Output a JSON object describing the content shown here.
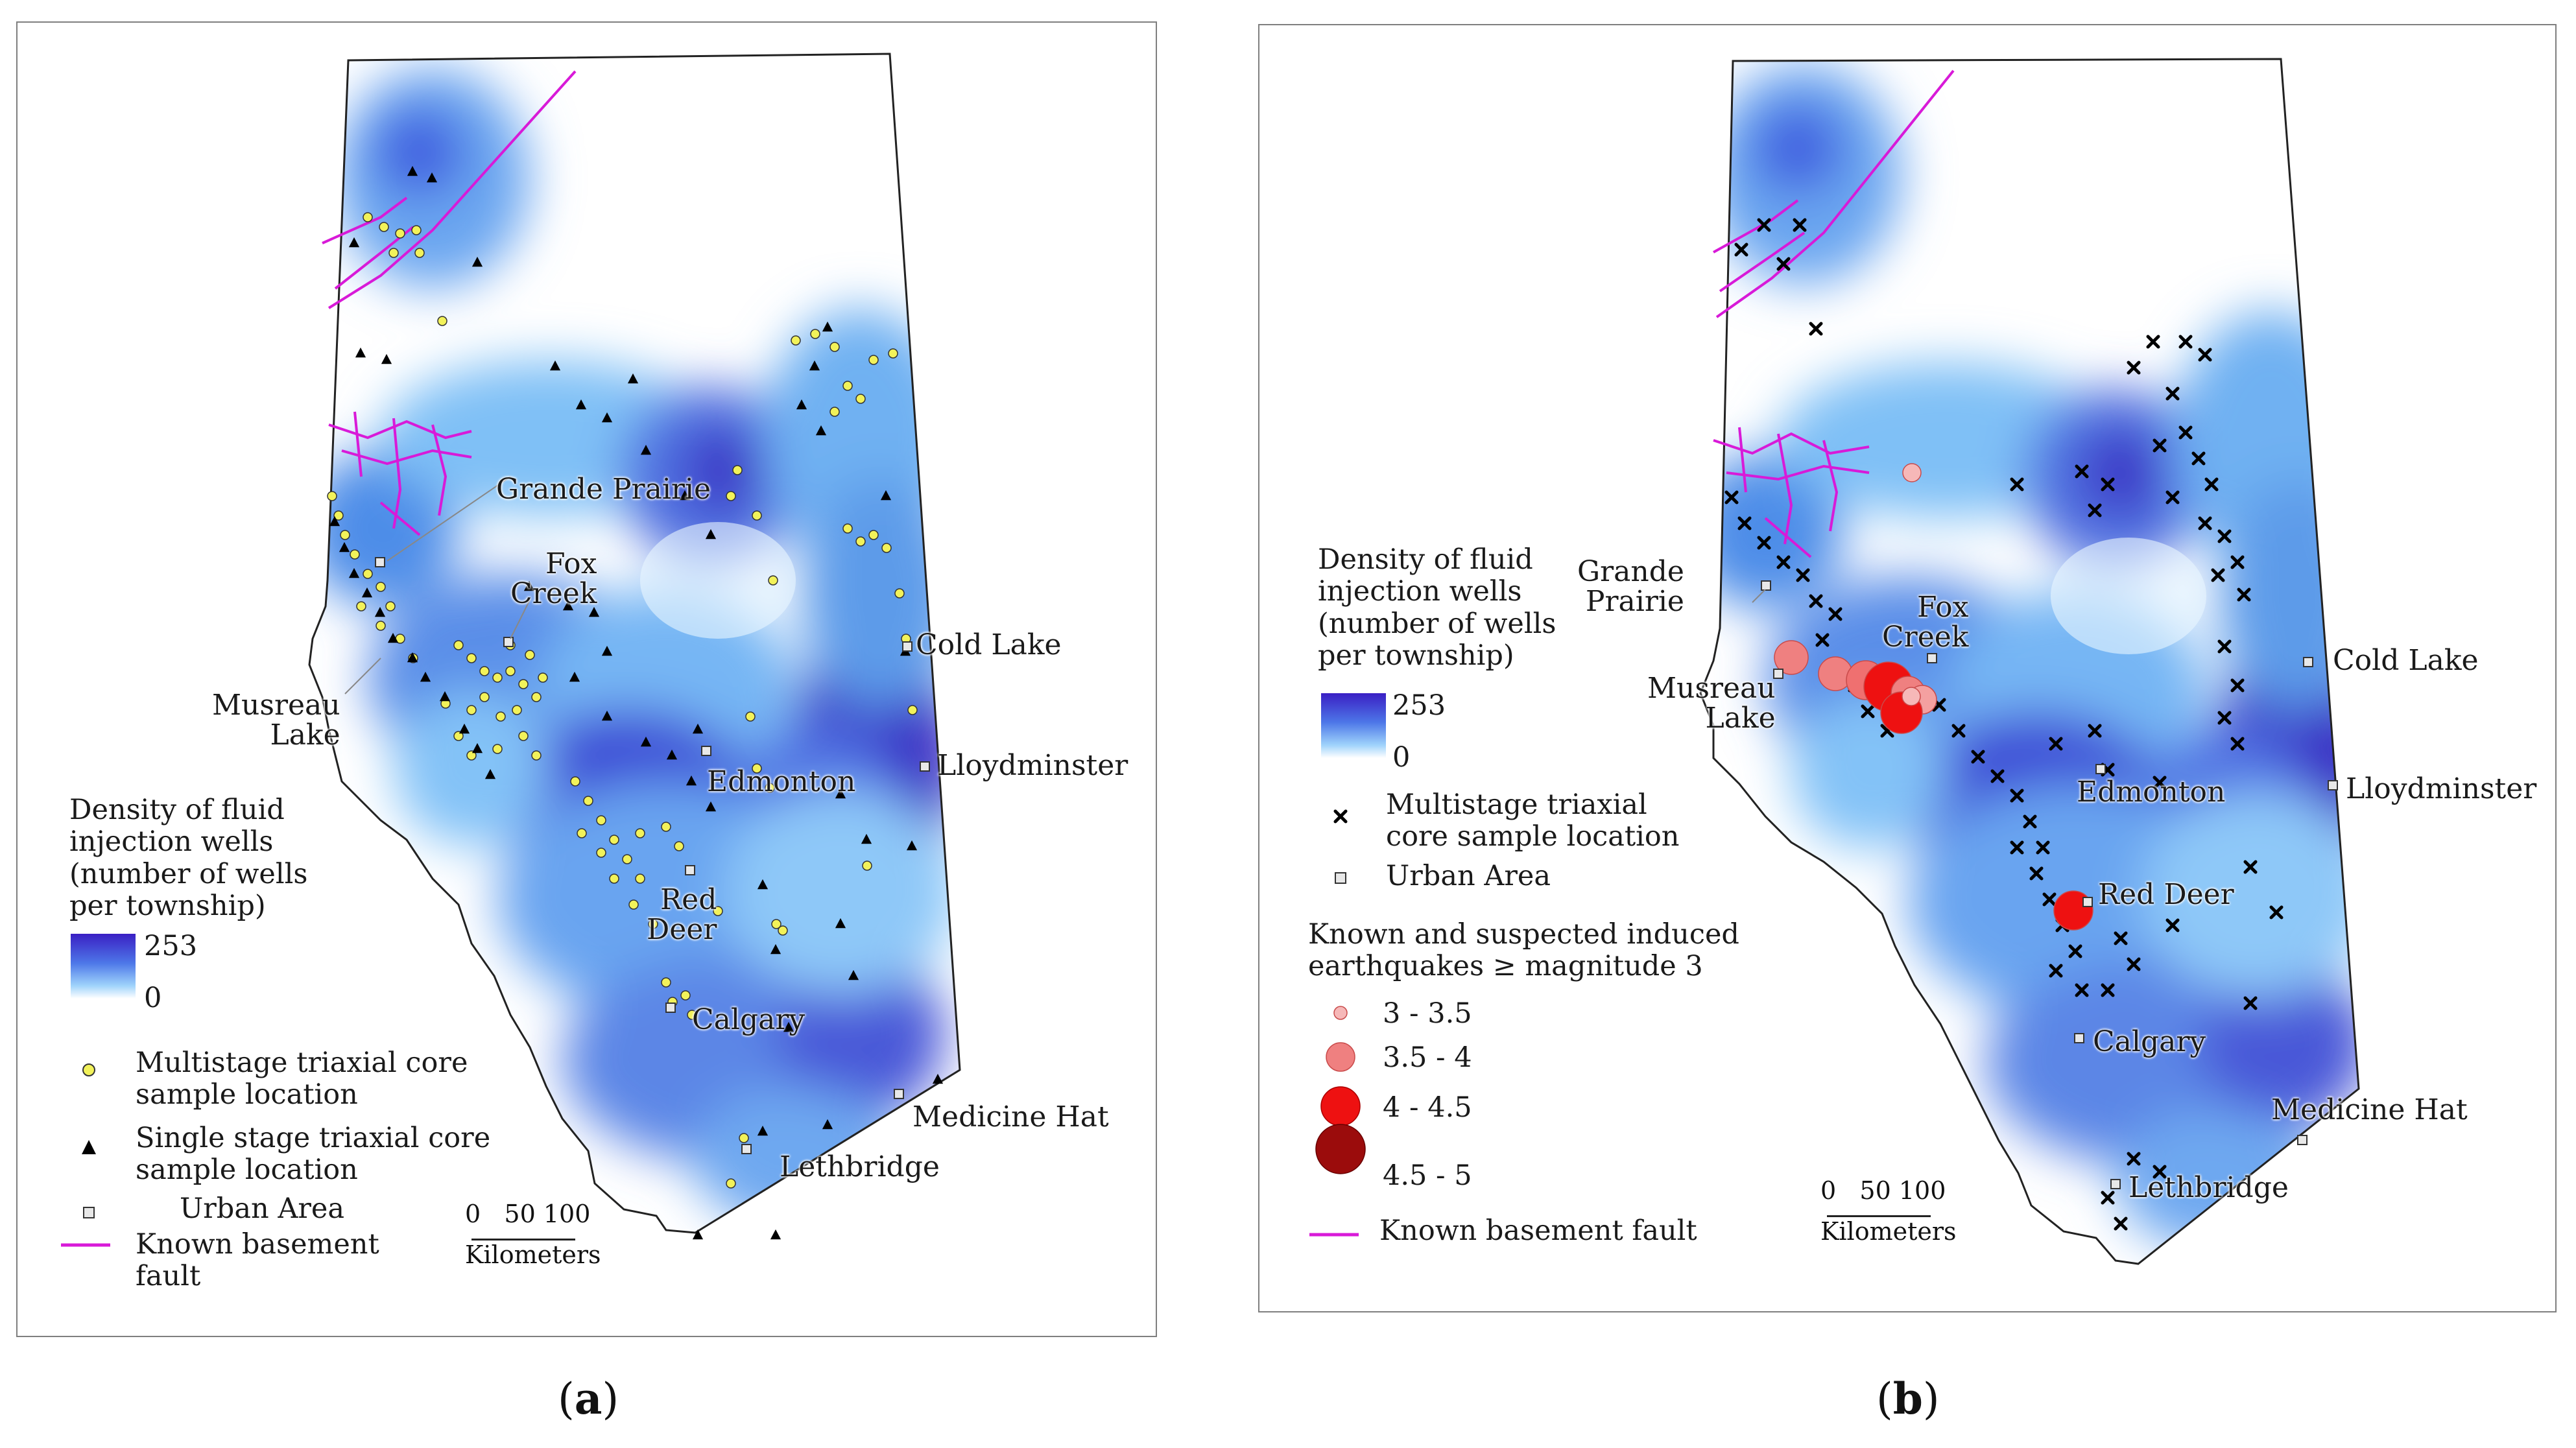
{
  "panel_a": {
    "caption_letter": "a",
    "cities": {
      "grande_prairie": "Grande Prairie",
      "fox_creek": "Fox\nCreek",
      "musreau_lake": "Musreau\nLake",
      "cold_lake": "Cold Lake",
      "edmonton": "Edmonton",
      "lloydminster": "Lloydminster",
      "red_deer": "Red\nDeer",
      "calgary": "Calgary",
      "medicine_hat": "Medicine Hat",
      "lethbridge": "Lethbridge"
    },
    "legend": {
      "density_title": "Density of fluid\ninjection wells\n(number of wells\nper township)",
      "density_max": "253",
      "density_min": "0",
      "multistage": "Multistage triaxial core\nsample location",
      "singlestage": "Single stage triaxial core\nsample location",
      "urban": "Urban Area",
      "fault": "Known basement\nfault"
    },
    "scale": {
      "ticks": "0   50 100",
      "unit": "Kilometers"
    }
  },
  "panel_b": {
    "caption_letter": "b",
    "cities": {
      "grande_prairie": "Grande\nPrairie",
      "fox_creek": "Fox\nCreek",
      "musreau_lake": "Musreau\nLake",
      "cold_lake": "Cold Lake",
      "edmonton": "Edmonton",
      "lloydminster": "Lloydminster",
      "red_deer": "Red Deer",
      "calgary": "Calgary",
      "medicine_hat": "Medicine Hat",
      "lethbridge": "Lethbridge"
    },
    "legend": {
      "density_title": "Density of fluid\ninjection wells\n(number of wells\nper township)",
      "density_max": "253",
      "density_min": "0",
      "multistage": "Multistage triaxial\ncore sample location",
      "urban": "Urban Area",
      "quake_title": "Known and suspected induced\nearthquakes ≥ magnitude 3",
      "mag_classes": [
        "3 - 3.5",
        "3.5 - 4",
        "4 - 4.5",
        "4.5 - 5"
      ],
      "fault": "Known basement fault"
    },
    "scale": {
      "ticks": "0   50 100",
      "unit": "Kilometers"
    }
  },
  "colors": {
    "density_high": "#3a1fc4",
    "density_mid": "#4d77e8",
    "density_low": "#9fd3fb",
    "fault": "#d81ad8",
    "multistage_fill": "#f2f25a",
    "quake_small": "#f6b8b8",
    "quake_mid": "#ef7070",
    "quake_large": "#ee1111",
    "quake_xlarge": "#9b0c0c"
  }
}
